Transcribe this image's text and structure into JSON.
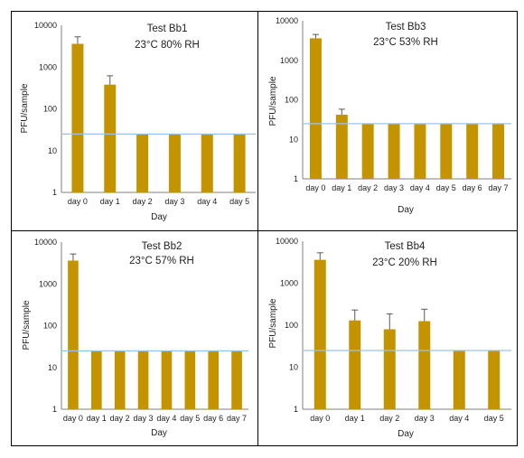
{
  "charts": [
    {
      "title": "Test Bb1",
      "subtitle": "23°C 80% RH",
      "ylabel": "PFU/sample",
      "xlabel": "Day",
      "yticks": [
        "1",
        "10",
        "100",
        "1000",
        "10000"
      ],
      "categories": [
        "day 0",
        "day 1",
        "day 2",
        "day 3",
        "day 4",
        "day 5"
      ]
    },
    {
      "title": "Test Bb3",
      "subtitle": "23°C 53% RH",
      "ylabel": "PFU/sample",
      "xlabel": "Day",
      "yticks": [
        "1",
        "10",
        "100",
        "1000",
        "10000"
      ],
      "categories": [
        "day 0",
        "day 1",
        "day 2",
        "day 3",
        "day 4",
        "day 5",
        "day 6",
        "day 7"
      ]
    },
    {
      "title": "Test Bb2",
      "subtitle": "23°C 57% RH",
      "ylabel": "PFU/sample",
      "xlabel": "Day",
      "yticks": [
        "1",
        "10",
        "100",
        "1000",
        "10000"
      ],
      "categories": [
        "day 0",
        "day 1",
        "day 2",
        "day 3",
        "day 4",
        "day 5",
        "day 6",
        "day 7"
      ]
    },
    {
      "title": "Test Bb4",
      "subtitle": "23°C 20% RH",
      "ylabel": "PFU/sample",
      "xlabel": "Day",
      "yticks": [
        "1",
        "10",
        "100",
        "1000",
        "10000"
      ],
      "categories": [
        "day 0",
        "day 1",
        "day 2",
        "day 3",
        "day 4",
        "day 5"
      ]
    }
  ],
  "chart_data": [
    {
      "type": "bar",
      "title": "Test Bb1",
      "subtitle": "23°C 80% RH",
      "xlabel": "Day",
      "ylabel": "PFU/sample",
      "yscale": "log",
      "ylim": [
        1,
        10000
      ],
      "categories": [
        "day 0",
        "day 1",
        "day 2",
        "day 3",
        "day 4",
        "day 5"
      ],
      "values": [
        3600,
        380,
        25,
        25,
        25,
        25
      ],
      "error_upper": [
        5300,
        620,
        null,
        null,
        null,
        null
      ],
      "detection_limit": 25,
      "bar_color": "#C39400",
      "line_color": "#9DC3E6",
      "grid": false
    },
    {
      "type": "bar",
      "title": "Test Bb3",
      "subtitle": "23°C 53% RH",
      "xlabel": "Day",
      "ylabel": "PFU/sample",
      "yscale": "log",
      "ylim": [
        1,
        10000
      ],
      "categories": [
        "day 0",
        "day 1",
        "day 2",
        "day 3",
        "day 4",
        "day 5",
        "day 6",
        "day 7"
      ],
      "values": [
        3600,
        42,
        25,
        25,
        25,
        25,
        25,
        25
      ],
      "error_upper": [
        4500,
        58,
        null,
        null,
        null,
        null,
        null,
        null
      ],
      "detection_limit": 25,
      "bar_color": "#C39400",
      "line_color": "#9DC3E6",
      "grid": false
    },
    {
      "type": "bar",
      "title": "Test Bb2",
      "subtitle": "23°C 57% RH",
      "xlabel": "Day",
      "ylabel": "PFU/sample",
      "yscale": "log",
      "ylim": [
        1,
        10000
      ],
      "categories": [
        "day 0",
        "day 1",
        "day 2",
        "day 3",
        "day 4",
        "day 5",
        "day 6",
        "day 7"
      ],
      "values": [
        3600,
        25,
        25,
        25,
        25,
        25,
        25,
        25
      ],
      "error_upper": [
        5200,
        null,
        null,
        null,
        null,
        null,
        null,
        null
      ],
      "detection_limit": 25,
      "bar_color": "#C39400",
      "line_color": "#9DC3E6",
      "grid": false
    },
    {
      "type": "bar",
      "title": "Test Bb4",
      "subtitle": "23°C 20% RH",
      "xlabel": "Day",
      "ylabel": "PFU/sample",
      "yscale": "log",
      "ylim": [
        1,
        10000
      ],
      "categories": [
        "day 0",
        "day 1",
        "day 2",
        "day 3",
        "day 4",
        "day 5"
      ],
      "values": [
        3600,
        130,
        80,
        125,
        25,
        25
      ],
      "error_upper": [
        5300,
        230,
        185,
        240,
        null,
        null
      ],
      "detection_limit": 25,
      "bar_color": "#C39400",
      "line_color": "#9DC3E6",
      "grid": false
    }
  ]
}
